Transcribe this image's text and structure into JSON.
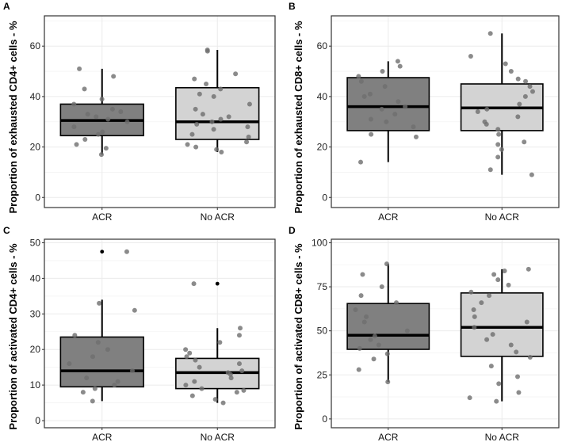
{
  "colors": {
    "acr_fill": "#808080",
    "noacr_fill": "#d3d3d3",
    "point": "#6e6e6e",
    "grid": "#ebebeb",
    "frame": "#333333"
  },
  "chart_data": [
    {
      "panel": "A",
      "type": "box",
      "ylabel": "Proportion of exhausted CD4+ cells - %",
      "ylim": [
        -4,
        72
      ],
      "yticks": [
        0,
        20,
        40,
        60
      ],
      "categories": [
        "ACR",
        "No ACR"
      ],
      "boxes": [
        {
          "name": "ACR",
          "q1": 24.5,
          "median": 30.5,
          "q3": 37,
          "whisker_low": 17,
          "whisker_high": 51,
          "outliers": [],
          "points": [
            17,
            19.5,
            21,
            23,
            25,
            26,
            28,
            30,
            31,
            32,
            33,
            34,
            35,
            37,
            39,
            43,
            48,
            51
          ]
        },
        {
          "name": "No ACR",
          "q1": 23,
          "median": 30,
          "q3": 43.5,
          "whisker_low": 18,
          "whisker_high": 58.5,
          "outliers": [],
          "points": [
            18,
            19,
            20,
            21,
            22,
            24,
            25,
            27,
            28,
            29,
            30,
            31,
            32,
            33,
            35,
            37,
            40,
            41,
            43,
            45,
            47,
            49,
            58,
            58.5
          ]
        }
      ]
    },
    {
      "panel": "B",
      "type": "box",
      "ylabel": "Proportion of exhausted CD8+ cells - %",
      "ylim": [
        -4,
        72
      ],
      "yticks": [
        0,
        20,
        40,
        60
      ],
      "categories": [
        "ACR",
        "No ACR"
      ],
      "boxes": [
        {
          "name": "ACR",
          "q1": 26.5,
          "median": 36,
          "q3": 47.5,
          "whisker_low": 14,
          "whisker_high": 54,
          "outliers": [],
          "points": [
            14,
            24,
            25,
            28,
            30,
            31,
            33,
            35,
            36,
            38,
            40,
            41,
            44,
            46,
            48,
            50,
            52,
            54
          ]
        },
        {
          "name": "No ACR",
          "q1": 26.5,
          "median": 35.5,
          "q3": 45,
          "whisker_low": 9,
          "whisker_high": 65,
          "outliers": [],
          "points": [
            9,
            11,
            16,
            19,
            21,
            22,
            25,
            27,
            29,
            30,
            32,
            34,
            35,
            37,
            40,
            42,
            44,
            46,
            47,
            50,
            53,
            56,
            65
          ]
        }
      ]
    },
    {
      "panel": "C",
      "type": "box",
      "ylabel": "Proportion of activated CD4+ cells - %",
      "ylim": [
        -2,
        51
      ],
      "yticks": [
        0,
        10,
        20,
        30,
        40,
        50
      ],
      "categories": [
        "ACR",
        "No ACR"
      ],
      "boxes": [
        {
          "name": "ACR",
          "q1": 9.5,
          "median": 14,
          "q3": 23.5,
          "whisker_low": 5.5,
          "whisker_high": 34,
          "outliers": [
            47.5
          ],
          "points": [
            5.5,
            8,
            9,
            10,
            11,
            12,
            14,
            16,
            18,
            20,
            22,
            24,
            31,
            33,
            47.5
          ]
        },
        {
          "name": "No ACR",
          "q1": 9,
          "median": 13.5,
          "q3": 17.5,
          "whisker_low": 5,
          "whisker_high": 26,
          "outliers": [
            38.5
          ],
          "points": [
            5,
            6,
            7,
            8,
            8.5,
            9,
            10,
            11,
            12,
            13,
            13.5,
            14,
            15,
            16,
            17,
            18,
            19,
            20,
            22,
            24,
            26,
            38.5
          ]
        }
      ]
    },
    {
      "panel": "D",
      "type": "box",
      "ylabel": "Proportion of activated CD8+ cells - %",
      "ylim": [
        -5,
        102
      ],
      "yticks": [
        0,
        25,
        50,
        75,
        100
      ],
      "categories": [
        "ACR",
        "No ACR"
      ],
      "boxes": [
        {
          "name": "ACR",
          "q1": 39.5,
          "median": 47.5,
          "q3": 65.5,
          "whisker_low": 21,
          "whisker_high": 88,
          "outliers": [],
          "points": [
            21,
            28,
            34,
            37,
            40,
            42,
            45,
            47,
            50,
            55,
            58,
            62,
            66,
            70,
            75,
            82,
            88
          ]
        },
        {
          "name": "No ACR",
          "q1": 35.5,
          "median": 52,
          "q3": 71.5,
          "whisker_low": 10,
          "whisker_high": 85,
          "outliers": [],
          "points": [
            10,
            12,
            15,
            20,
            24,
            30,
            35,
            38,
            42,
            45,
            48,
            52,
            55,
            58,
            62,
            66,
            70,
            72,
            76,
            79,
            82,
            84,
            85
          ]
        }
      ]
    }
  ]
}
